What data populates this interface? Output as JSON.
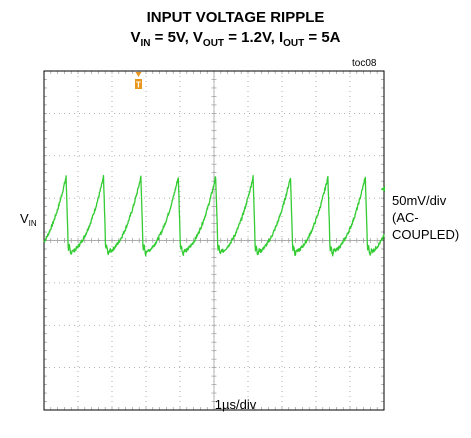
{
  "title_line1": "INPUT VOLTAGE RIPPLE",
  "title_line2": {
    "vin_v": "V",
    "vin_sub": "IN",
    "vin_val": " = 5V, ",
    "vout_v": "V",
    "vout_sub": "OUT",
    "vout_val": " = 1.2V, ",
    "iout_i": "I",
    "iout_sub": "OUT",
    "iout_val": " = 5A"
  },
  "toc_label": "toc08",
  "channel_label": {
    "v": "V",
    "sub": "IN"
  },
  "vertical_scale": "50mV/div",
  "coupling": "(AC-COUPLED)",
  "timebase": "1µs/div",
  "colors": {
    "trace": "#33cc33",
    "trigger_marker": "#e8961e",
    "frame": "#000000",
    "grid": "#999999"
  },
  "chart_data": {
    "type": "line",
    "title": "INPUT VOLTAGE RIPPLE",
    "xlabel": "1µs/div",
    "ylabel": "VIN",
    "x_divisions": 10,
    "y_divisions": 8,
    "xlim": [
      0,
      10
    ],
    "ylim": [
      -4,
      4
    ],
    "ripple_period_div": 1.1,
    "peak_div": 1.5,
    "trough_div": -0.25,
    "baseline_div": 0,
    "grid": true
  }
}
